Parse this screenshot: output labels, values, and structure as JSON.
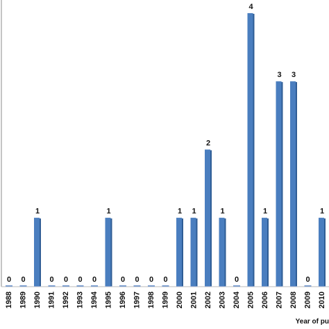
{
  "chart_data": {
    "type": "bar",
    "x_label": "Year of pu",
    "categories": [
      "1988",
      "1989",
      "1990",
      "1991",
      "1992",
      "1993",
      "1994",
      "1995",
      "1996",
      "1997",
      "1998",
      "1999",
      "2000",
      "2001",
      "2002",
      "2003",
      "2004",
      "2005",
      "2006",
      "2007",
      "2008",
      "2009",
      "2010"
    ],
    "values": [
      0,
      0,
      1,
      0,
      0,
      0,
      0,
      1,
      0,
      0,
      0,
      0,
      1,
      1,
      2,
      1,
      0,
      4,
      1,
      3,
      3,
      0,
      1
    ],
    "color": "#4a7ebf",
    "ylim": [
      0,
      4.05
    ],
    "grid": false
  }
}
